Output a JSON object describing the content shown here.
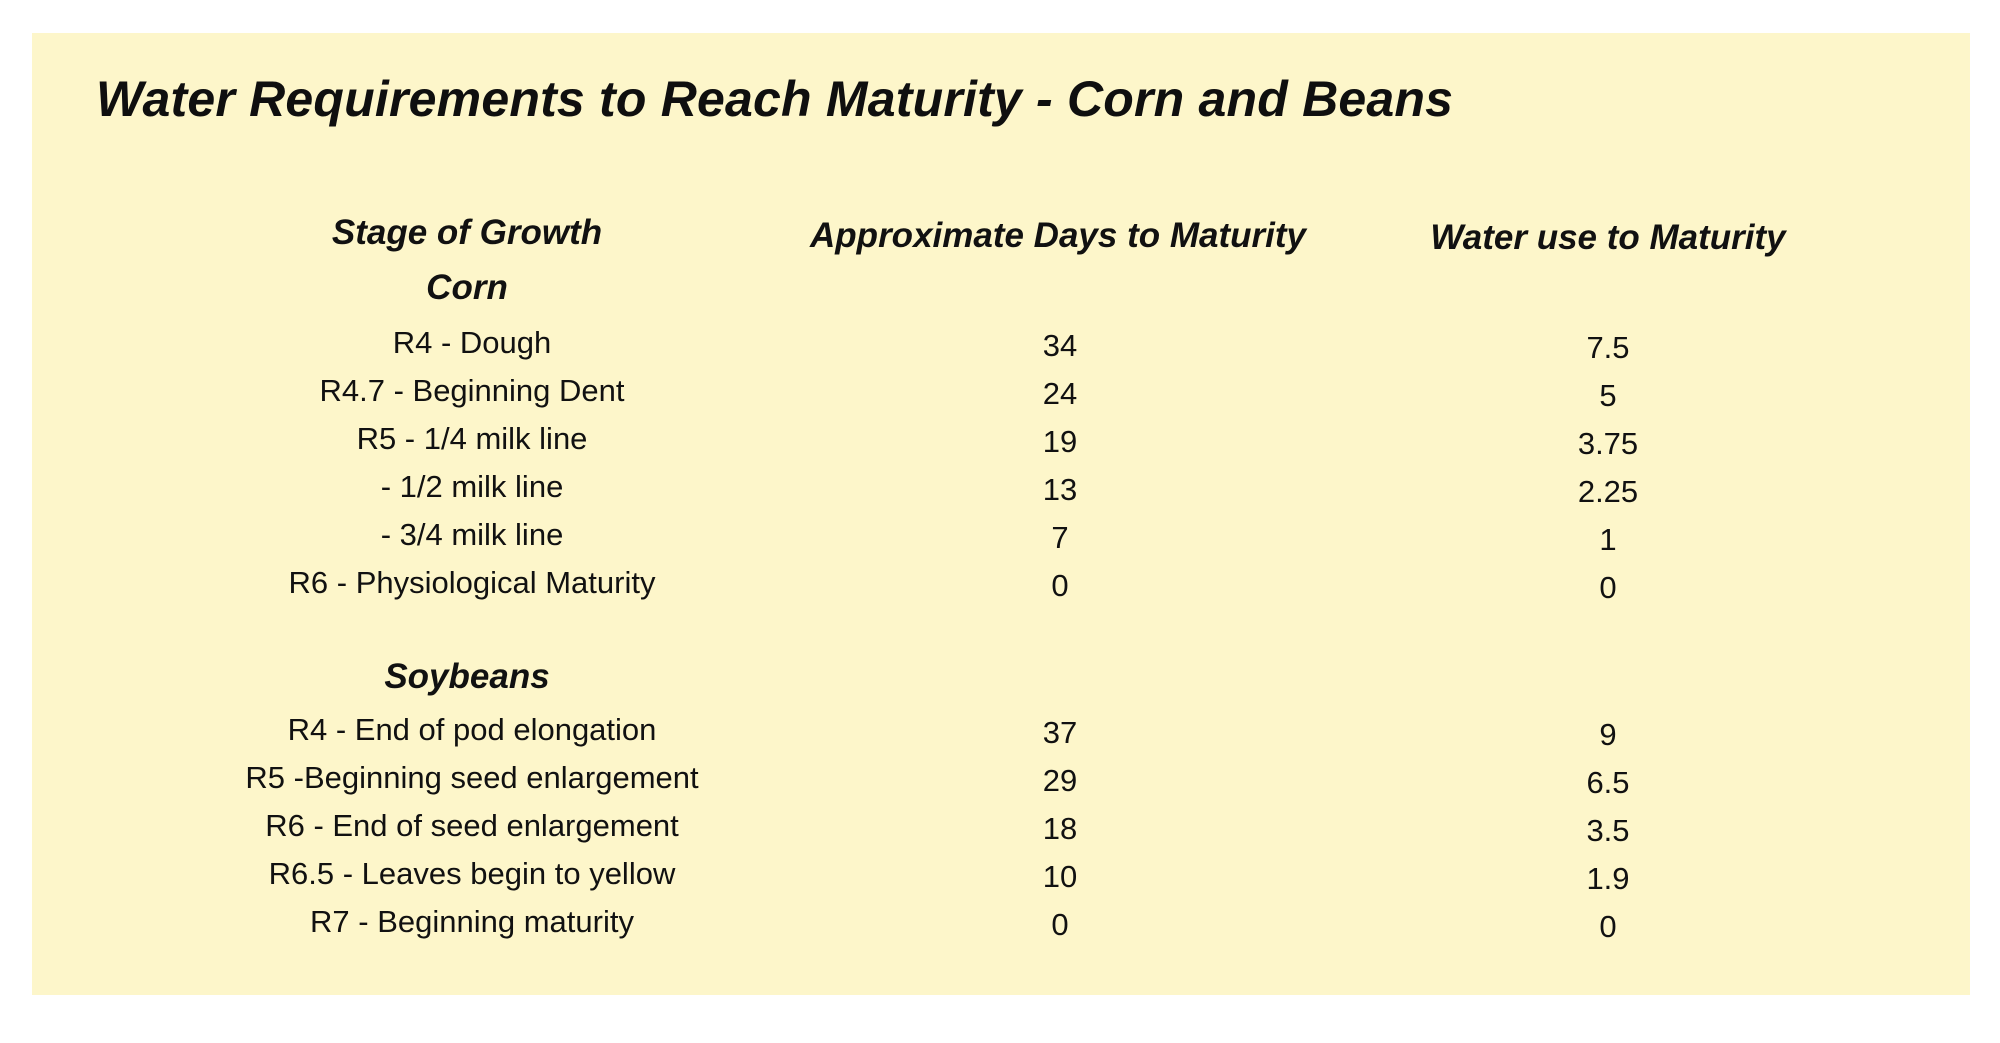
{
  "title": "Water Requirements to Reach Maturity - Corn and Beans",
  "columns": {
    "stage": "Stage of Growth",
    "days": "Approximate Days to Maturity",
    "water": "Water use to Maturity"
  },
  "groups": [
    {
      "name": "Corn",
      "rows": [
        {
          "stage": "R4 - Dough",
          "days": "34",
          "water": "7.5"
        },
        {
          "stage": "R4.7 - Beginning Dent",
          "days": "24",
          "water": "5"
        },
        {
          "stage": "R5 - 1/4 milk line",
          "days": "19",
          "water": "3.75"
        },
        {
          "stage": "- 1/2 milk line",
          "days": "13",
          "water": "2.25"
        },
        {
          "stage": "- 3/4 milk line",
          "days": "7",
          "water": "1"
        },
        {
          "stage": "R6 - Physiological Maturity",
          "days": "0",
          "water": "0"
        }
      ]
    },
    {
      "name": "Soybeans",
      "rows": [
        {
          "stage": "R4 - End of pod elongation",
          "days": "37",
          "water": "9"
        },
        {
          "stage": "R5 -Beginning seed enlargement",
          "days": "29",
          "water": "6.5"
        },
        {
          "stage": "R6 - End of seed enlargement",
          "days": "18",
          "water": "3.5"
        },
        {
          "stage": "R6.5 - Leaves begin to yellow",
          "days": "10",
          "water": "1.9"
        },
        {
          "stage": "R7 - Beginning maturity",
          "days": "0",
          "water": "0"
        }
      ]
    }
  ]
}
